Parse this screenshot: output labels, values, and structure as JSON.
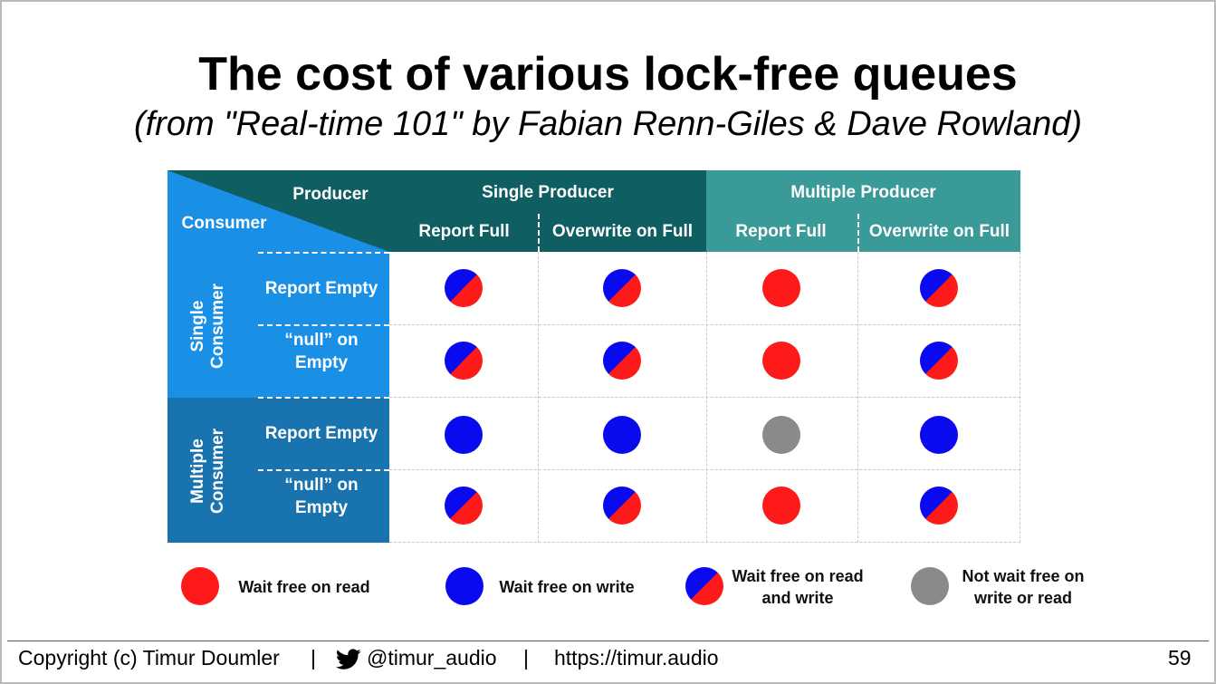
{
  "title": "The cost of various lock-free queues",
  "subtitle": "(from \"Real-time 101\" by Fabian Renn-Giles & Dave Rowland)",
  "table": {
    "corner_producer": "Producer",
    "corner_consumer": "Consumer",
    "single_producer": "Single Producer",
    "multiple_producer": "Multiple Producer",
    "col_report_full_1": "Report Full",
    "col_overwrite_1": "Overwrite on Full",
    "col_report_full_2": "Report Full",
    "col_overwrite_2": "Overwrite on Full",
    "single_consumer": "Single Consumer",
    "multiple_consumer": "Multiple Consumer",
    "row_report_empty_1": "Report Empty",
    "row_null_1": "“null” on Empty",
    "row_report_empty_2": "Report Empty",
    "row_null_2": "“null” on Empty",
    "cells": [
      [
        "both",
        "both",
        "red",
        "both"
      ],
      [
        "both",
        "both",
        "red",
        "both"
      ],
      [
        "blue",
        "blue",
        "gray",
        "blue"
      ],
      [
        "both",
        "both",
        "red",
        "both"
      ]
    ]
  },
  "legend": {
    "red": "Wait free on read",
    "blue": "Wait free on write",
    "both": "Wait free on read and write",
    "gray": "Not wait free on write or read"
  },
  "colors": {
    "red": "#ff1a1a",
    "blue": "#0a0aee",
    "gray": "#8a8a8a",
    "header_teal_dark": "#0e5e62",
    "header_teal_light": "#3a9a97",
    "side_blue": "#1a8fe6",
    "side_blue_dark": "#1873ae"
  },
  "footer": {
    "copyright": "Copyright (c) Timur Doumler",
    "sep1": "|",
    "twitter_icon": "twitter-bird-icon",
    "twitter": "@timur_audio",
    "sep2": "|",
    "url": "https://timur.audio",
    "page_number": "59"
  }
}
